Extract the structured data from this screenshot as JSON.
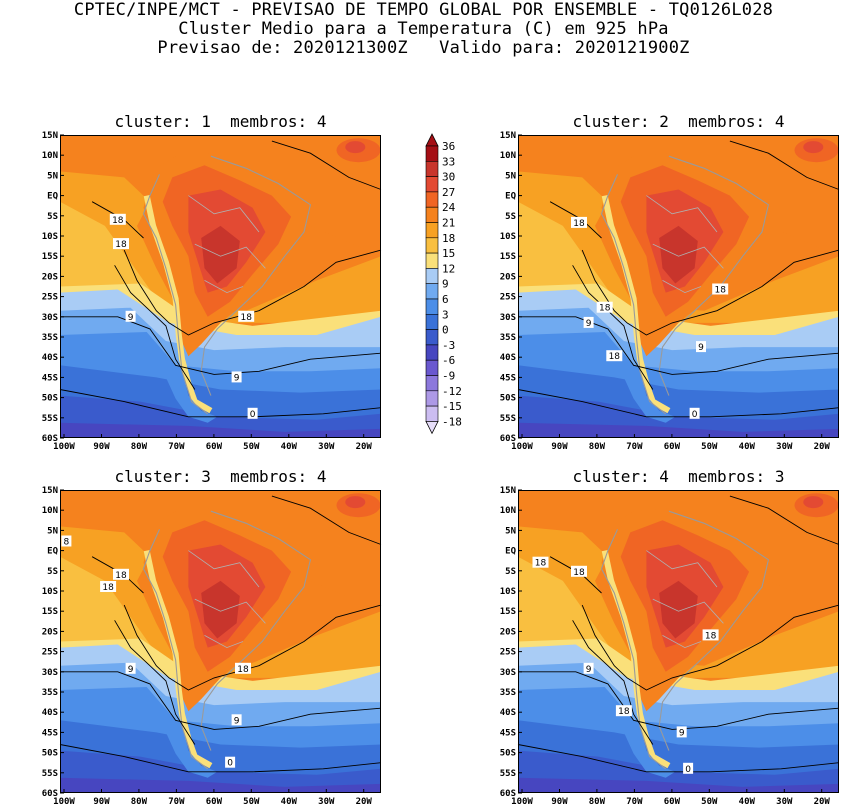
{
  "header": {
    "line1": "CPTEC/INPE/MCT - PREVISAO DE TEMPO GLOBAL POR ENSEMBLE - TQ0126L028",
    "line2": "Cluster Medio para a Temperatura (C) em 925 hPa",
    "line3": "Previsao de: 2020121300Z   Valido para: 2020121900Z"
  },
  "panels": [
    {
      "title": "cluster: 1  membros: 4",
      "contour_labels": [
        "18",
        "18",
        "9",
        "18",
        "9",
        "0"
      ]
    },
    {
      "title": "cluster: 2  membros: 4",
      "contour_labels": [
        "18",
        "18",
        "9",
        "18",
        "18",
        "9",
        "0"
      ]
    },
    {
      "title": "cluster: 3  membros: 4",
      "contour_labels": [
        "8",
        "18",
        "18",
        "9",
        "18",
        "9",
        "0"
      ]
    },
    {
      "title": "cluster: 4  membros: 3",
      "contour_labels": [
        "18",
        "18",
        "18",
        "9",
        "18",
        "9",
        "0"
      ]
    }
  ],
  "axes": {
    "lat_ticks": [
      "15N",
      "10N",
      "5N",
      "EQ",
      "5S",
      "10S",
      "15S",
      "20S",
      "25S",
      "30S",
      "35S",
      "40S",
      "45S",
      "50S",
      "55S",
      "60S"
    ],
    "lon_ticks": [
      "100W",
      "90W",
      "80W",
      "70W",
      "60W",
      "50W",
      "40W",
      "30W",
      "20W"
    ]
  },
  "colorbar": {
    "labels": [
      "36",
      "33",
      "30",
      "27",
      "24",
      "21",
      "18",
      "15",
      "12",
      "9",
      "6",
      "3",
      "0",
      "-3",
      "-6",
      "-9",
      "-12",
      "-15",
      "-18"
    ],
    "colors": [
      "#a50f15",
      "#c8352c",
      "#e34a33",
      "#f06524",
      "#f5821e",
      "#f7a123",
      "#f9bf40",
      "#fae07a",
      "#a9ccf5",
      "#70aaf0",
      "#4c8ee8",
      "#3a72d8",
      "#3a5bcc",
      "#4746c0",
      "#6a58cf",
      "#8c78dc",
      "#ad99e6",
      "#ccbdf1",
      "#e6ddf9"
    ]
  }
}
